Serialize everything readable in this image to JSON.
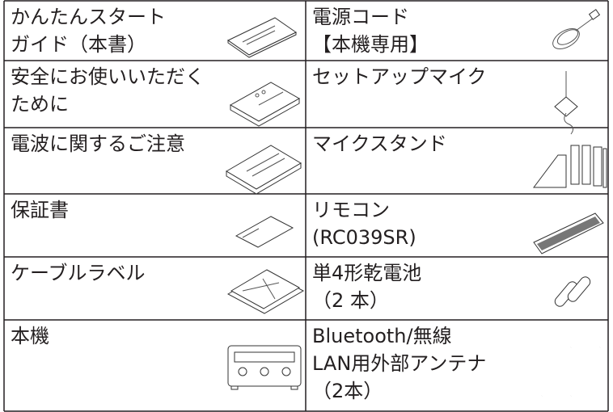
{
  "table": {
    "rows": [
      [
        [
          "かんたんスタート",
          "ガイド（本書）"
        ],
        [
          "電源コード",
          "【本機専用】"
        ]
      ],
      [
        [
          "安全にお使いいただく",
          "ために"
        ],
        [
          "セットアップマイク"
        ]
      ],
      [
        [
          "電波に関するご注意"
        ],
        [
          "マイクスタンド"
        ]
      ],
      [
        [
          "保証書"
        ],
        [
          "リモコン",
          "(RC039SR)"
        ]
      ],
      [
        [
          "ケーブルラベル"
        ],
        [
          "単4形乾電池",
          "（2 本）"
        ]
      ],
      [
        [
          "本機"
        ],
        [
          "Bluetooth/無線",
          "LAN用外部アンテナ",
          "（2本）"
        ]
      ]
    ]
  }
}
